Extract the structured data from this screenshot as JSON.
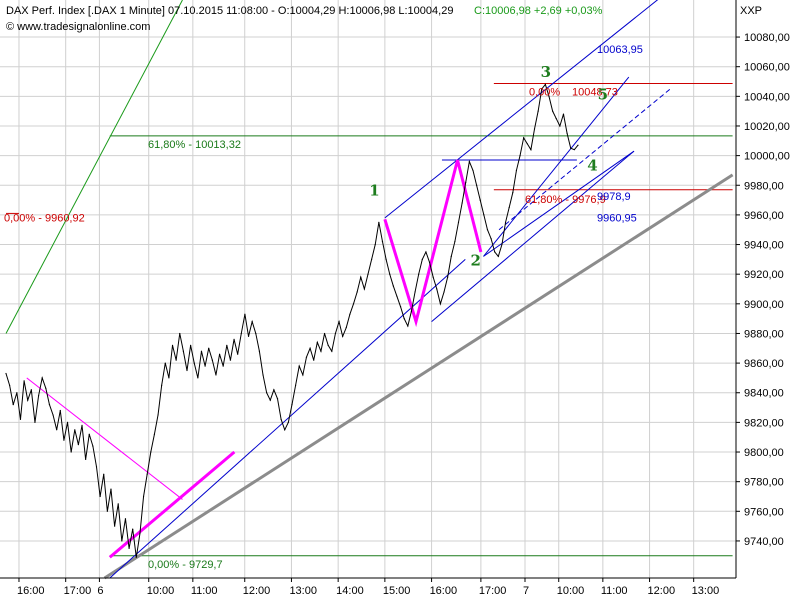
{
  "header": {
    "title": "DAX Perf. Index [.DAX  1 Minute] 07.10.2015 11:08:00 - O:10004,29 H:10006,98 L:10004,29",
    "change": "C:10006,98 +2,69 +0,03%",
    "source": "© www.tradesignalonline.com",
    "symbol": "XXP"
  },
  "colors": {
    "price": "#000000",
    "channel": "#0000cc",
    "horizontal": "#1a7a1a",
    "fib_red": "#cc0000",
    "magenta": "#ff00ff",
    "trend_gray": "#8c8c8c",
    "green_line": "#1a9a1a",
    "grid": "#d0d0d0",
    "wave_labels": "#1e7d1e"
  },
  "chart_data": {
    "type": "line",
    "ylim": [
      9715,
      10105
    ],
    "yticks": [
      9740,
      9760,
      9780,
      9800,
      9820,
      9840,
      9860,
      9880,
      9900,
      9920,
      9940,
      9960,
      9980,
      10000,
      10020,
      10040,
      10060,
      10080
    ],
    "ytick_labels": [
      "9740,00",
      "9760,00",
      "9780,00",
      "9800,00",
      "9820,00",
      "9840,00",
      "9860,00",
      "9880,00",
      "9900,00",
      "9920,00",
      "9940,00",
      "9960,00",
      "9980,00",
      "10000,00",
      "10020,00",
      "10040,00",
      "10060,00",
      "10080,00"
    ],
    "x_labels": [
      "16:00",
      "17:00",
      "6",
      "10:00",
      "11:00",
      "12:00",
      "13:00",
      "14:00",
      "15:00",
      "16:00",
      "17:00",
      "7",
      "10:00",
      "11:00",
      "12:00",
      "13:00"
    ],
    "x_label_index": [
      5,
      23,
      36,
      55,
      72,
      92,
      110,
      128,
      146,
      164,
      183,
      200,
      213,
      230,
      248,
      265
    ],
    "x_count": 280,
    "series": [
      {
        "values": [
          9853,
          9845,
          9832,
          9840,
          9822,
          9848,
          9835,
          9842,
          9820,
          9838,
          9850,
          9843,
          9832,
          9825,
          9815,
          9828,
          9808,
          9820,
          9800,
          9815,
          9805,
          9818,
          9795,
          9812,
          9804,
          9790,
          9770,
          9785,
          9760,
          9775,
          9750,
          9765,
          9740,
          9755,
          9735,
          9748,
          9729,
          9745,
          9770,
          9785,
          9800,
          9812,
          9825,
          9845,
          9860,
          9850,
          9872,
          9862,
          9880,
          9868,
          9855,
          9872,
          9860,
          9850,
          9868,
          9858,
          9870,
          9862,
          9852,
          9866,
          9858,
          9872,
          9862,
          9876,
          9866,
          9880,
          9893,
          9878,
          9888,
          9880,
          9868,
          9852,
          9840,
          9835,
          9842,
          9836,
          9822,
          9815,
          9820,
          9832,
          9845,
          9858,
          9852,
          9864,
          9870,
          9862,
          9874,
          9868,
          9880,
          9872,
          9868,
          9880,
          9888,
          9878,
          9884,
          9893,
          9900,
          9908,
          9918,
          9910,
          9920,
          9930,
          9940,
          9955,
          9942,
          9930,
          9920,
          9912,
          9905,
          9898,
          9890,
          9885,
          9895,
          9908,
          9920,
          9930,
          9935,
          9928,
          9918,
          9910,
          9900,
          9908,
          9918,
          9932,
          9942,
          9955,
          9968,
          9982,
          9996,
          9990,
          9980,
          9970,
          9960,
          9950,
          9944,
          9935,
          9932,
          9940,
          9955,
          9965,
          9975,
          9990,
          10000,
          10012,
          10008,
          10004,
          10018,
          10030,
          10045,
          10048,
          10040,
          10030,
          10025,
          10020,
          10028,
          10015,
          10005,
          10004,
          10007
        ]
      }
    ],
    "annotations": [
      {
        "text": "0,00% - 9960,92",
        "kind": "fib",
        "y": 9960.92
      },
      {
        "text": "0,00% - 9729,7",
        "kind": "fib",
        "y": 9729.7
      },
      {
        "text": "61,80% - 10013,32",
        "kind": "fib",
        "y": 10013.32
      },
      {
        "text": "0,00%",
        "kind": "fib",
        "y": 10048.73
      },
      {
        "text": "10048,73",
        "kind": "fib",
        "y": 10048.73
      },
      {
        "text": "61,80% - 9976,9",
        "kind": "fib",
        "y": 9976.9
      },
      {
        "text": "10063,95",
        "kind": "target",
        "y": 10063.95
      },
      {
        "text": "9978,9",
        "kind": "target",
        "y": 9978.9
      },
      {
        "text": "9960,95",
        "kind": "target",
        "y": 9960.95
      }
    ],
    "wave_labels": [
      {
        "text": "1",
        "x": 140,
        "y": 9973
      },
      {
        "text": "2",
        "x": 179,
        "y": 9926
      },
      {
        "text": "3",
        "x": 206,
        "y": 10053
      },
      {
        "text": "4",
        "x": 224,
        "y": 9990
      },
      {
        "text": "5",
        "x": 228,
        "y": 10038
      }
    ],
    "grid": true
  }
}
